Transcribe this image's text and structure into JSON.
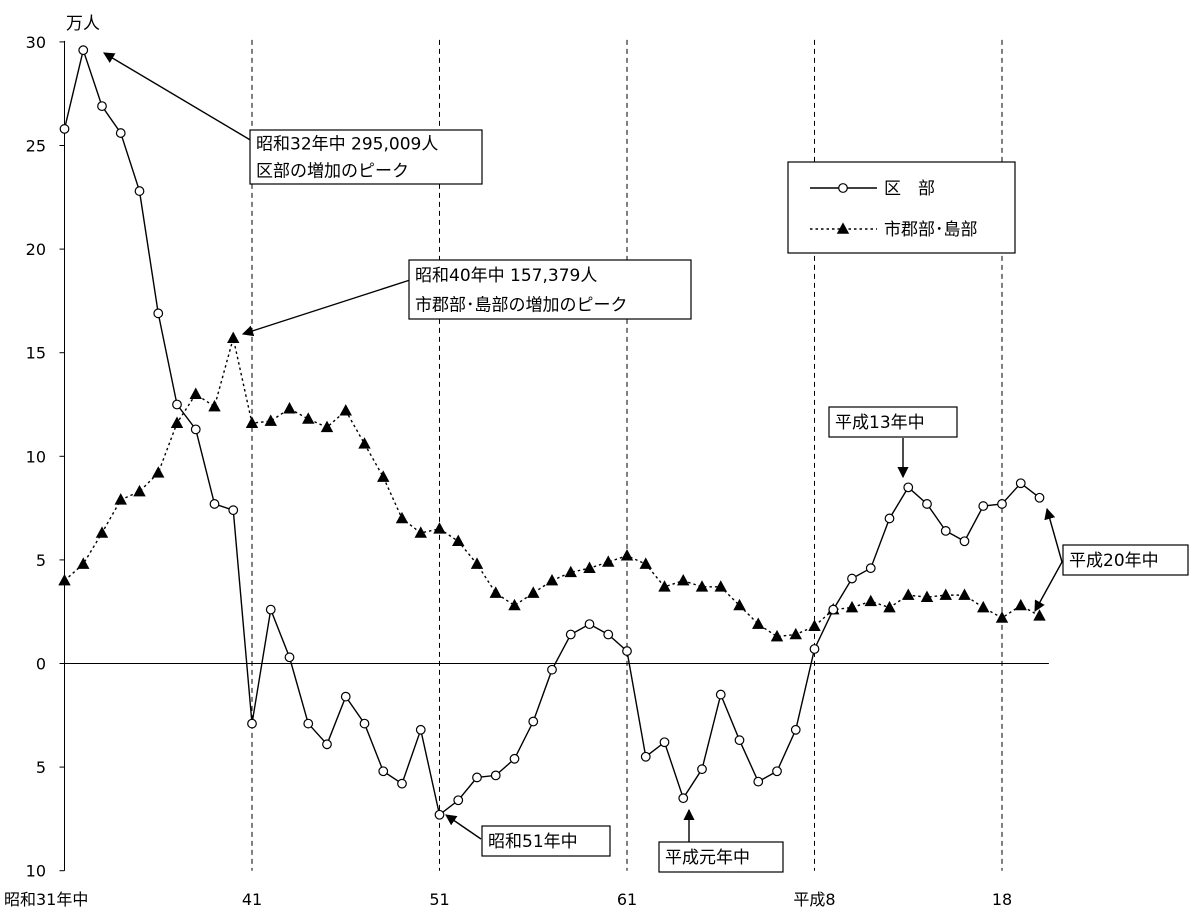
{
  "chart_data": {
    "type": "line",
    "unit_label": "万人",
    "y_tick_labels": [
      "30",
      "25",
      "20",
      "15",
      "10",
      "5",
      "0",
      "5",
      "10"
    ],
    "y_tick_values": [
      30,
      25,
      20,
      15,
      10,
      5,
      0,
      -5,
      -10
    ],
    "ylim": [
      -10,
      30
    ],
    "x_tick_labels": [
      "昭和31年中",
      "41",
      "51",
      "61",
      "平成8",
      "18"
    ],
    "x_tick_index": [
      0,
      10,
      20,
      30,
      40,
      50
    ],
    "vertical_dashed_gridlines_at_index": [
      10,
      20,
      30,
      40,
      50
    ],
    "zero_line": true,
    "legend_placement": "top-right",
    "series": [
      {
        "name": "区　部",
        "style": "solid",
        "marker": "circle-open",
        "values": [
          25.8,
          29.6,
          26.9,
          25.6,
          22.8,
          16.9,
          12.5,
          11.3,
          7.7,
          7.4,
          -2.9,
          2.6,
          0.3,
          -2.9,
          -3.9,
          -1.6,
          -2.9,
          -5.2,
          -5.8,
          -3.2,
          -7.3,
          -6.6,
          -5.5,
          -5.4,
          -4.6,
          -2.8,
          -0.3,
          1.4,
          1.9,
          1.4,
          0.6,
          -4.5,
          -3.8,
          -6.5,
          -5.1,
          -1.5,
          -3.7,
          -5.7,
          -5.2,
          -3.2,
          0.7,
          2.6,
          4.1,
          4.6,
          7.0,
          8.5,
          7.7,
          6.4,
          5.9,
          7.6,
          7.7,
          8.7,
          8.0
        ]
      },
      {
        "name": "市郡部･島部",
        "style": "dotted",
        "marker": "triangle-filled",
        "values": [
          4.0,
          4.8,
          6.3,
          7.9,
          8.3,
          9.2,
          11.6,
          13.0,
          12.4,
          15.7,
          11.6,
          11.7,
          12.3,
          11.8,
          11.4,
          12.2,
          10.6,
          9.0,
          7.0,
          6.3,
          6.5,
          5.9,
          4.8,
          3.4,
          2.8,
          3.4,
          4.0,
          4.4,
          4.6,
          4.9,
          5.2,
          4.8,
          3.7,
          4.0,
          3.7,
          3.7,
          2.8,
          1.9,
          1.3,
          1.4,
          1.8,
          2.6,
          2.7,
          3.0,
          2.7,
          3.3,
          3.2,
          3.3,
          3.3,
          2.7,
          2.2,
          2.8,
          2.3
        ]
      }
    ],
    "annotations": [
      {
        "lines": [
          "昭和32年中 295,009人",
          "区部の増加のピーク"
        ],
        "series": 0,
        "index": 1
      },
      {
        "lines": [
          "昭和40年中 157,379人",
          "市郡部･島部の増加のピーク"
        ],
        "series": 1,
        "index": 9
      },
      {
        "lines": [
          "平成13年中"
        ],
        "series": 0,
        "index": 45
      },
      {
        "lines": [
          "平成20年中"
        ],
        "series": 0,
        "index": 52
      },
      {
        "lines": [
          "昭和51年中"
        ],
        "series": 0,
        "index": 20
      },
      {
        "lines": [
          "平成元年中"
        ],
        "series": 0,
        "index": 33
      }
    ]
  }
}
